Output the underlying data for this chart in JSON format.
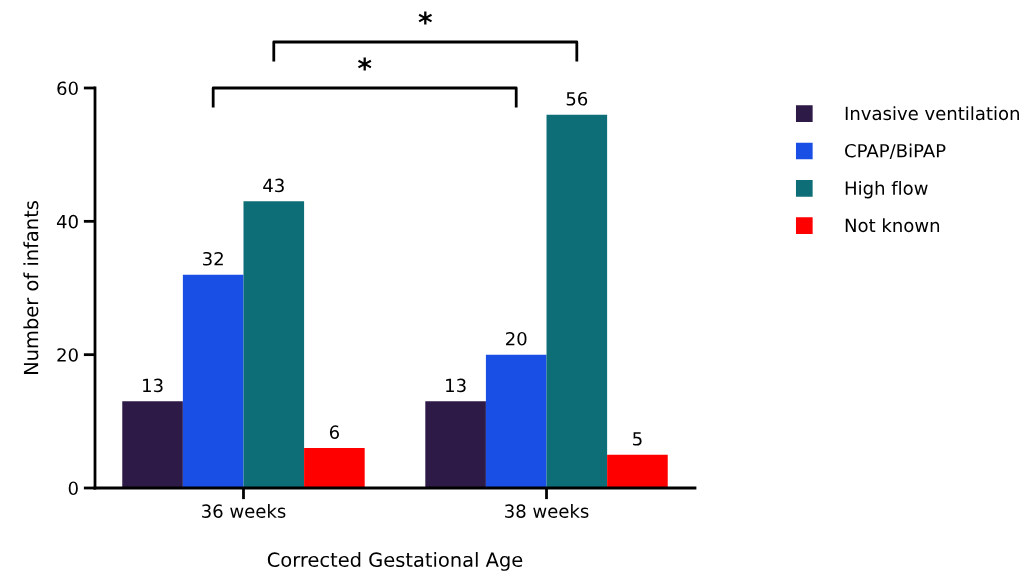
{
  "chart_data": {
    "type": "bar",
    "xlabel": "Corrected Gestational Age",
    "ylabel": "Number of infants",
    "categories": [
      "36 weeks",
      "38 weeks"
    ],
    "series": [
      {
        "name": "Invasive ventilation",
        "color": "#2e1a47",
        "values": [
          13,
          13
        ]
      },
      {
        "name": "CPAP/BiPAP",
        "color": "#1a4fe6",
        "values": [
          32,
          20
        ]
      },
      {
        "name": "High flow",
        "color": "#0e6e78",
        "values": [
          43,
          56
        ]
      },
      {
        "name": "Not known",
        "color": "#ff0000",
        "values": [
          6,
          5
        ]
      }
    ],
    "ylim": [
      0,
      60
    ],
    "yticks": [
      0,
      20,
      40,
      60
    ],
    "grid": false,
    "legend": "right",
    "data_labels": true,
    "annotations": [
      "*",
      "*"
    ]
  }
}
